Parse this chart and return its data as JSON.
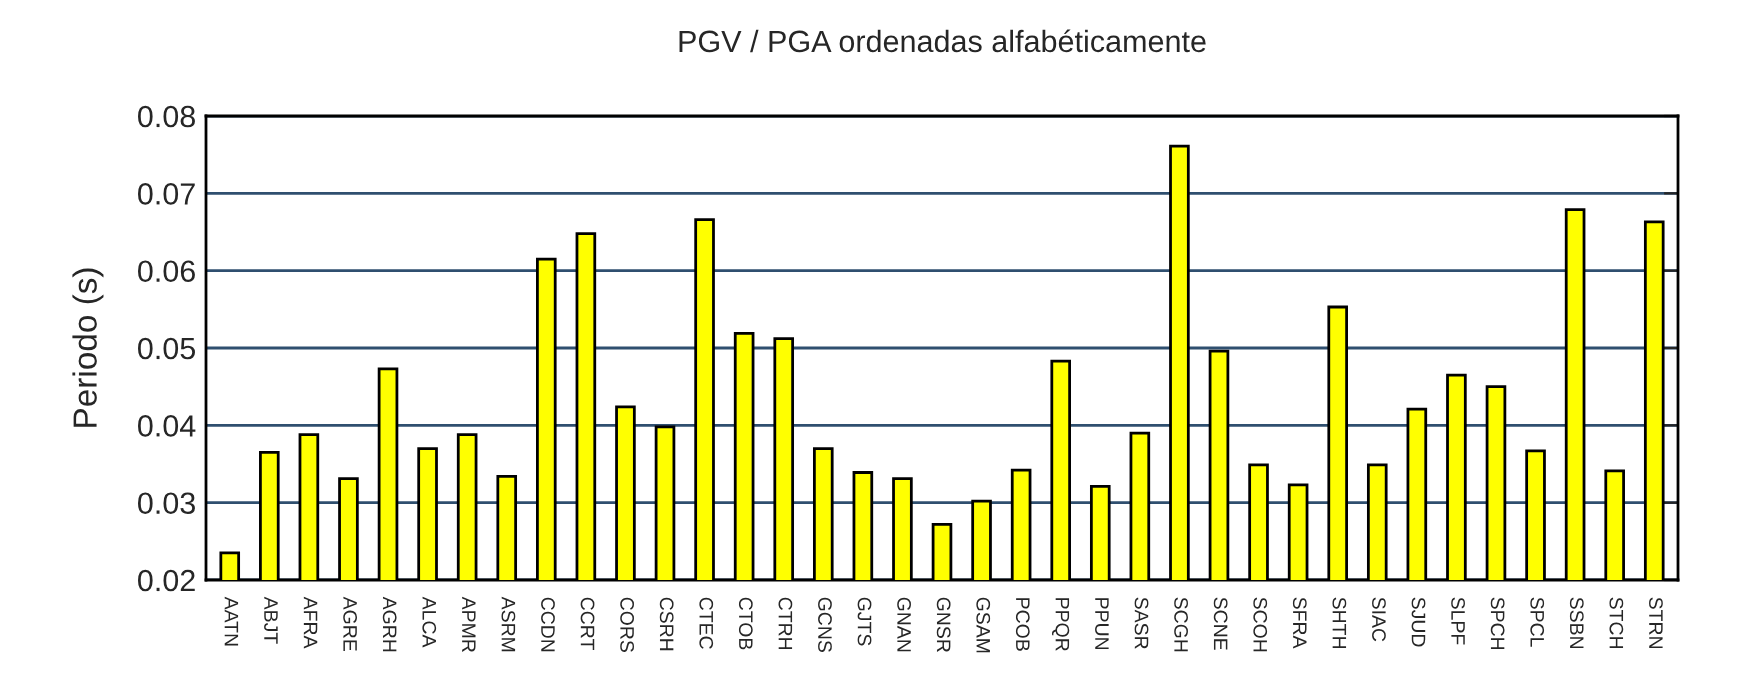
{
  "chart_data": {
    "type": "bar",
    "title": "PGV / PGA ordenadas alfabéticamente",
    "ylabel": "Periodo (s)",
    "categories": [
      "AATN",
      "ABJT",
      "AFRA",
      "AGRE",
      "AGRH",
      "ALCA",
      "APMR",
      "ASRM",
      "CCDN",
      "CCRT",
      "CORS",
      "CSRH",
      "CTEC",
      "CTOB",
      "CTRH",
      "GCNS",
      "GJTS",
      "GNAN",
      "GNSR",
      "GSAM",
      "PCOB",
      "PPQR",
      "PPUN",
      "SASR",
      "SCGH",
      "SCNE",
      "SCOH",
      "SFRA",
      "SHTH",
      "SIAC",
      "SJUD",
      "SLPF",
      "SPCH",
      "SPCL",
      "SSBN",
      "STCH",
      "STRN"
    ],
    "values": [
      0.0235,
      0.0365,
      0.0388,
      0.0331,
      0.0473,
      0.037,
      0.0388,
      0.0334,
      0.0615,
      0.0648,
      0.0424,
      0.0398,
      0.0666,
      0.0519,
      0.0512,
      0.037,
      0.0339,
      0.0331,
      0.0272,
      0.0302,
      0.0342,
      0.0483,
      0.0321,
      0.039,
      0.0761,
      0.0496,
      0.0349,
      0.0323,
      0.0553,
      0.0349,
      0.0421,
      0.0465,
      0.045,
      0.0367,
      0.0679,
      0.0341,
      0.0663
    ],
    "color": "#ffff00",
    "ylim": [
      0.02,
      0.08
    ],
    "yticks": [
      0.02,
      0.03,
      0.04,
      0.05,
      0.06,
      0.07,
      0.08
    ],
    "grid": "y",
    "legend": false
  }
}
